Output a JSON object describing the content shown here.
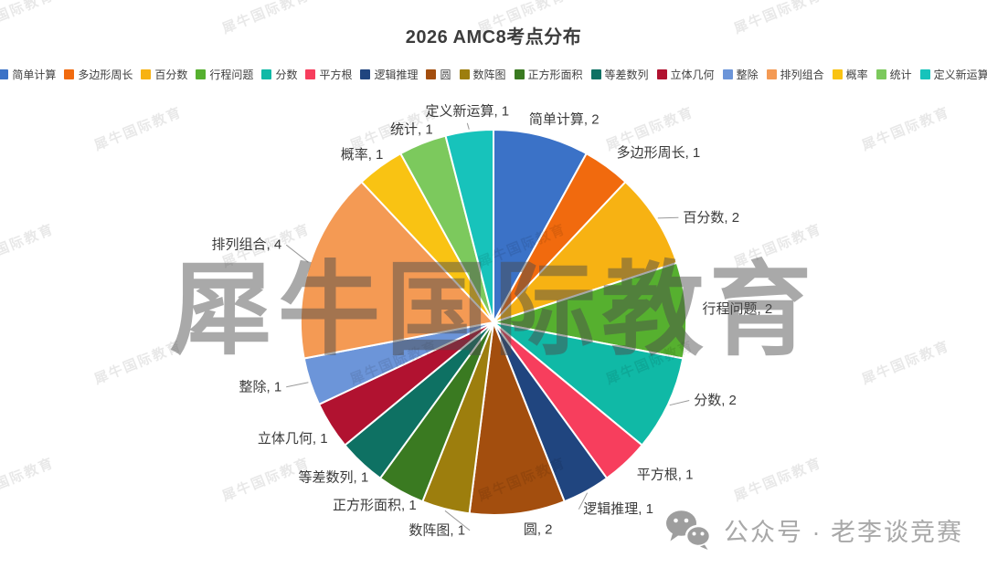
{
  "title": "2026 AMC8考点分布",
  "watermark": {
    "text": "犀牛国际教育"
  },
  "footer": {
    "account_text": "公众号 · 老李谈竞赛",
    "icon": "wechat-icon"
  },
  "chart_data": {
    "type": "pie",
    "title": "2026 AMC8考点分布",
    "legend_position": "top",
    "total": 25,
    "start_angle_deg": 0,
    "direction": "clockwise",
    "slices": [
      {
        "label": "简单计算",
        "value": 2,
        "color": "#3B72C7",
        "leader": false
      },
      {
        "label": "多边形周长",
        "value": 1,
        "color": "#F16A0E",
        "leader": false
      },
      {
        "label": "百分数",
        "value": 2,
        "color": "#F7B213",
        "leader": true
      },
      {
        "label": "行程问题",
        "value": 2,
        "color": "#56B02F",
        "leader": false
      },
      {
        "label": "分数",
        "value": 2,
        "color": "#10B9A6",
        "leader": true
      },
      {
        "label": "平方根",
        "value": 1,
        "color": "#F73E5D",
        "leader": false
      },
      {
        "label": "逻辑推理",
        "value": 1,
        "color": "#20457F",
        "leader": true
      },
      {
        "label": "圆",
        "value": 2,
        "color": "#A34E0E",
        "leader": false
      },
      {
        "label": "数阵图",
        "value": 1,
        "color": "#9D7E0D",
        "leader": true
      },
      {
        "label": "正方形面积",
        "value": 1,
        "color": "#3A7A21",
        "leader": false
      },
      {
        "label": "等差数列",
        "value": 1,
        "color": "#0E7163",
        "leader": false
      },
      {
        "label": "立体几何",
        "value": 1,
        "color": "#B11230",
        "leader": false
      },
      {
        "label": "整除",
        "value": 1,
        "color": "#6C95D9",
        "leader": true
      },
      {
        "label": "排列组合",
        "value": 4,
        "color": "#F49A54",
        "leader": true
      },
      {
        "label": "概率",
        "value": 1,
        "color": "#F9C313",
        "leader": false
      },
      {
        "label": "统计",
        "value": 1,
        "color": "#7CC95D",
        "leader": false
      },
      {
        "label": "定义新运算",
        "value": 1,
        "color": "#17C3BB",
        "leader": true
      }
    ]
  }
}
